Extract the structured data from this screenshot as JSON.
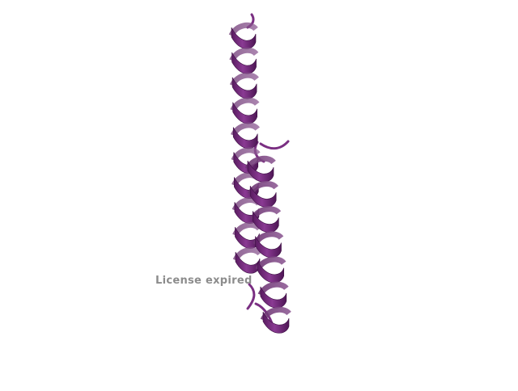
{
  "scene": {
    "background": "#ffffff",
    "ribbon_color": "#7a2f82",
    "ribbon_dark": "#4a1350",
    "ribbon_light": "#9c4fa4",
    "representation": "cartoon-alpha-helix"
  },
  "watermark": {
    "text": "License expired"
  }
}
